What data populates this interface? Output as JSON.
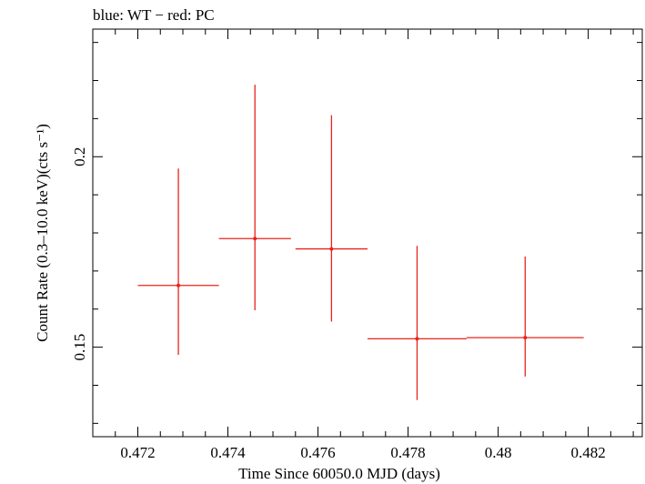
{
  "chart_data": {
    "type": "scatter",
    "title": "blue: WT − red: PC",
    "xlabel": "Time Since 60050.0 MJD (days)",
    "ylabel": "Count Rate (0.3–10.0 keV)(cts s⁻¹)",
    "xlim": [
      0.471,
      0.4832
    ],
    "ylim": [
      0.1265,
      0.2335
    ],
    "xticks": [
      0.472,
      0.474,
      0.476,
      0.478,
      0.48,
      0.482
    ],
    "xtick_labels": [
      "0.472",
      "0.474",
      "0.476",
      "0.478",
      "0.48",
      "0.482"
    ],
    "yticks": [
      0.15,
      0.2
    ],
    "ytick_labels": [
      "0.15",
      "0.2"
    ],
    "series": [
      {
        "color": "#e8241c",
        "points": [
          {
            "x": 0.4729,
            "xlo": 0.472,
            "xhi": 0.4738,
            "y": 0.1662,
            "ylo": 0.148,
            "yhi": 0.1969
          },
          {
            "x": 0.4746,
            "xlo": 0.4738,
            "xhi": 0.4754,
            "y": 0.1785,
            "ylo": 0.1597,
            "yhi": 0.2189
          },
          {
            "x": 0.4763,
            "xlo": 0.4755,
            "xhi": 0.4771,
            "y": 0.1758,
            "ylo": 0.1567,
            "yhi": 0.2109
          },
          {
            "x": 0.4782,
            "xlo": 0.4771,
            "xhi": 0.4793,
            "y": 0.1522,
            "ylo": 0.1361,
            "yhi": 0.1766
          },
          {
            "x": 0.4806,
            "xlo": 0.4793,
            "xhi": 0.4819,
            "y": 0.1525,
            "ylo": 0.1423,
            "yhi": 0.1738
          }
        ]
      }
    ]
  }
}
